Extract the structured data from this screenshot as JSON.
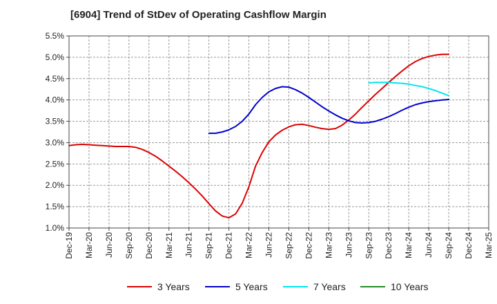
{
  "chart_data": {
    "type": "line",
    "title": "[6904]  Trend of StDev of Operating Cashflow Margin",
    "xlabel": "",
    "ylabel": "",
    "x_ticks": [
      "Dec-19",
      "Mar-20",
      "Jun-20",
      "Sep-20",
      "Dec-20",
      "Mar-21",
      "Jun-21",
      "Sep-21",
      "Dec-21",
      "Mar-22",
      "Jun-22",
      "Sep-22",
      "Dec-22",
      "Mar-23",
      "Jun-23",
      "Sep-23",
      "Dec-23",
      "Mar-24",
      "Jun-24",
      "Sep-24",
      "Dec-24",
      "Mar-25"
    ],
    "y_ticks": [
      "1.0%",
      "1.5%",
      "2.0%",
      "2.5%",
      "3.0%",
      "3.5%",
      "4.0%",
      "4.5%",
      "5.0%",
      "5.5%"
    ],
    "ylim": [
      1.0,
      5.5
    ],
    "grid": true,
    "legend_position": "bottom",
    "series": [
      {
        "name": "3 Years",
        "color": "#dd0000",
        "points": [
          [
            "Dec-19",
            2.93
          ],
          [
            "Jan-20",
            2.95
          ],
          [
            "Feb-20",
            2.96
          ],
          [
            "Mar-20",
            2.95
          ],
          [
            "Apr-20",
            2.94
          ],
          [
            "May-20",
            2.93
          ],
          [
            "Jun-20",
            2.92
          ],
          [
            "Jul-20",
            2.91
          ],
          [
            "Aug-20",
            2.91
          ],
          [
            "Sep-20",
            2.91
          ],
          [
            "Oct-20",
            2.89
          ],
          [
            "Nov-20",
            2.84
          ],
          [
            "Dec-20",
            2.77
          ],
          [
            "Jan-21",
            2.68
          ],
          [
            "Feb-21",
            2.57
          ],
          [
            "Mar-21",
            2.45
          ],
          [
            "Apr-21",
            2.33
          ],
          [
            "May-21",
            2.2
          ],
          [
            "Jun-21",
            2.06
          ],
          [
            "Jul-21",
            1.91
          ],
          [
            "Aug-21",
            1.75
          ],
          [
            "Sep-21",
            1.57
          ],
          [
            "Oct-21",
            1.4
          ],
          [
            "Nov-21",
            1.28
          ],
          [
            "Dec-21",
            1.24
          ],
          [
            "Jan-22",
            1.33
          ],
          [
            "Feb-22",
            1.58
          ],
          [
            "Mar-22",
            1.97
          ],
          [
            "Apr-22",
            2.45
          ],
          [
            "May-22",
            2.77
          ],
          [
            "Jun-22",
            3.02
          ],
          [
            "Jul-22",
            3.18
          ],
          [
            "Aug-22",
            3.29
          ],
          [
            "Sep-22",
            3.37
          ],
          [
            "Oct-22",
            3.42
          ],
          [
            "Nov-22",
            3.43
          ],
          [
            "Dec-22",
            3.4
          ],
          [
            "Jan-23",
            3.36
          ],
          [
            "Feb-23",
            3.33
          ],
          [
            "Mar-23",
            3.31
          ],
          [
            "Apr-23",
            3.33
          ],
          [
            "May-23",
            3.41
          ],
          [
            "Jun-23",
            3.53
          ],
          [
            "Jul-23",
            3.67
          ],
          [
            "Aug-23",
            3.83
          ],
          [
            "Sep-23",
            3.98
          ],
          [
            "Oct-23",
            4.13
          ],
          [
            "Nov-23",
            4.27
          ],
          [
            "Dec-23",
            4.41
          ],
          [
            "Jan-24",
            4.55
          ],
          [
            "Feb-24",
            4.68
          ],
          [
            "Mar-24",
            4.8
          ],
          [
            "Apr-24",
            4.9
          ],
          [
            "May-24",
            4.97
          ],
          [
            "Jun-24",
            5.02
          ],
          [
            "Jul-24",
            5.05
          ],
          [
            "Aug-24",
            5.07
          ],
          [
            "Sep-24",
            5.07
          ]
        ]
      },
      {
        "name": "5 Years",
        "color": "#0000cc",
        "points": [
          [
            "Sep-21",
            3.22
          ],
          [
            "Oct-21",
            3.22
          ],
          [
            "Nov-21",
            3.25
          ],
          [
            "Dec-21",
            3.3
          ],
          [
            "Jan-22",
            3.38
          ],
          [
            "Feb-22",
            3.5
          ],
          [
            "Mar-22",
            3.67
          ],
          [
            "Apr-22",
            3.89
          ],
          [
            "May-22",
            4.06
          ],
          [
            "Jun-22",
            4.19
          ],
          [
            "Jul-22",
            4.27
          ],
          [
            "Aug-22",
            4.31
          ],
          [
            "Sep-22",
            4.3
          ],
          [
            "Oct-22",
            4.24
          ],
          [
            "Nov-22",
            4.16
          ],
          [
            "Dec-22",
            4.06
          ],
          [
            "Jan-23",
            3.95
          ],
          [
            "Feb-23",
            3.84
          ],
          [
            "Mar-23",
            3.74
          ],
          [
            "Apr-23",
            3.65
          ],
          [
            "May-23",
            3.57
          ],
          [
            "Jun-23",
            3.51
          ],
          [
            "Jul-23",
            3.47
          ],
          [
            "Aug-23",
            3.46
          ],
          [
            "Sep-23",
            3.47
          ],
          [
            "Oct-23",
            3.5
          ],
          [
            "Nov-23",
            3.55
          ],
          [
            "Dec-23",
            3.61
          ],
          [
            "Jan-24",
            3.68
          ],
          [
            "Feb-24",
            3.76
          ],
          [
            "Mar-24",
            3.83
          ],
          [
            "Apr-24",
            3.89
          ],
          [
            "May-24",
            3.93
          ],
          [
            "Jun-24",
            3.96
          ],
          [
            "Jul-24",
            3.98
          ],
          [
            "Aug-24",
            4.0
          ],
          [
            "Sep-24",
            4.01
          ]
        ]
      },
      {
        "name": "7 Years",
        "color": "#00e5ee",
        "points": [
          [
            "Sep-23",
            4.4
          ],
          [
            "Oct-23",
            4.41
          ],
          [
            "Nov-23",
            4.41
          ],
          [
            "Dec-23",
            4.41
          ],
          [
            "Jan-24",
            4.4
          ],
          [
            "Feb-24",
            4.39
          ],
          [
            "Mar-24",
            4.37
          ],
          [
            "Apr-24",
            4.34
          ],
          [
            "May-24",
            4.31
          ],
          [
            "Jun-24",
            4.27
          ],
          [
            "Jul-24",
            4.22
          ],
          [
            "Aug-24",
            4.16
          ],
          [
            "Sep-24",
            4.1
          ]
        ]
      },
      {
        "name": "10 Years",
        "color": "#228b22",
        "points": []
      }
    ]
  }
}
